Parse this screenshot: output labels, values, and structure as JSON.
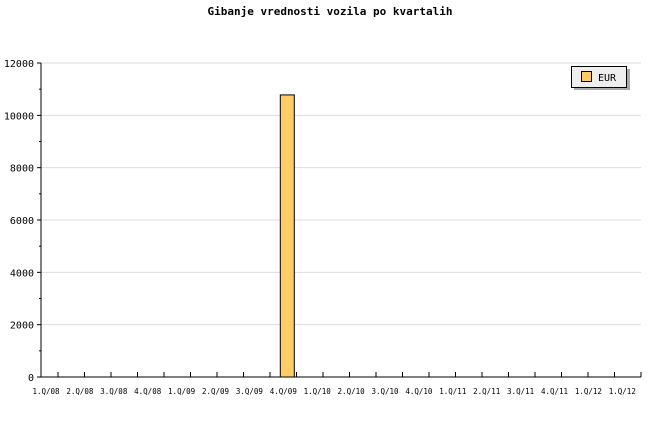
{
  "chart_data": {
    "type": "bar",
    "title": "Gibanje vrednosti vozila po kvartalih",
    "categories": [
      "1.Q/08",
      "2.Q/08",
      "3.Q/08",
      "4.Q/08",
      "1.Q/09",
      "2.Q/09",
      "3.Q/09",
      "4.Q/09",
      "1.Q/10",
      "2.Q/10",
      "3.Q/10",
      "4.Q/10",
      "1.Q/11",
      "2.Q/11",
      "3.Q/11",
      "4.Q/11",
      "1.Q/12",
      "1.Q/12"
    ],
    "series": [
      {
        "name": "EUR",
        "values": [
          null,
          null,
          null,
          null,
          null,
          null,
          null,
          10780,
          null,
          null,
          null,
          null,
          null,
          null,
          null,
          null,
          null,
          null
        ],
        "color": "#ffcc66"
      }
    ],
    "yticks": [
      0,
      2000,
      4000,
      6000,
      8000,
      10000,
      12000
    ],
    "ylim": [
      0,
      12000
    ],
    "grid": true,
    "legend": "top-right"
  }
}
